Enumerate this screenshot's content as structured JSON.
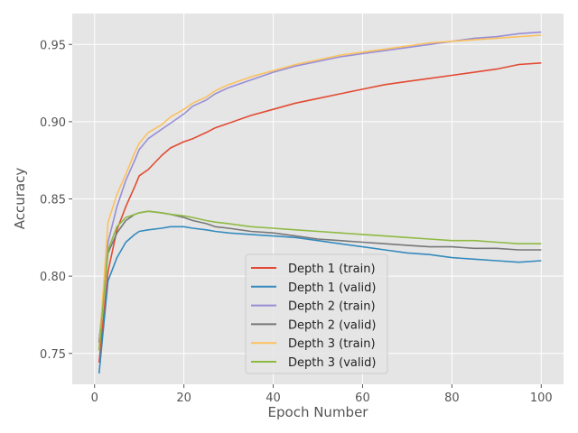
{
  "chart_data": {
    "type": "line",
    "title": "",
    "xlabel": "Epoch Number",
    "ylabel": "Accuracy",
    "xlim": [
      -5,
      105
    ],
    "ylim": [
      0.73,
      0.97
    ],
    "xticks": [
      0,
      20,
      40,
      60,
      80,
      100
    ],
    "yticks": [
      0.75,
      0.8,
      0.85,
      0.9,
      0.95
    ],
    "ytick_labels": [
      "0.75",
      "0.80",
      "0.85",
      "0.90",
      "0.95"
    ],
    "grid": true,
    "legend_position": "bottom-center",
    "x": [
      1,
      3,
      5,
      7,
      9,
      10,
      12,
      15,
      17,
      20,
      22,
      25,
      27,
      30,
      35,
      40,
      45,
      50,
      55,
      60,
      65,
      70,
      75,
      80,
      85,
      90,
      95,
      100
    ],
    "series": [
      {
        "name": "Depth 1 (train)",
        "color": "#E24A33",
        "values": [
          0.744,
          0.803,
          0.83,
          0.845,
          0.858,
          0.865,
          0.869,
          0.878,
          0.883,
          0.887,
          0.889,
          0.893,
          0.896,
          0.899,
          0.904,
          0.908,
          0.912,
          0.915,
          0.918,
          0.921,
          0.924,
          0.926,
          0.928,
          0.93,
          0.932,
          0.934,
          0.937,
          0.938
        ]
      },
      {
        "name": "Depth 1 (valid)",
        "color": "#348ABD",
        "values": [
          0.737,
          0.797,
          0.812,
          0.822,
          0.827,
          0.829,
          0.83,
          0.831,
          0.832,
          0.832,
          0.831,
          0.83,
          0.829,
          0.828,
          0.827,
          0.826,
          0.825,
          0.823,
          0.821,
          0.819,
          0.817,
          0.815,
          0.814,
          0.812,
          0.811,
          0.81,
          0.809,
          0.81
        ]
      },
      {
        "name": "Depth 2 (train)",
        "color": "#988ED5",
        "values": [
          0.757,
          0.822,
          0.845,
          0.862,
          0.875,
          0.882,
          0.889,
          0.895,
          0.899,
          0.905,
          0.91,
          0.914,
          0.918,
          0.922,
          0.927,
          0.932,
          0.936,
          0.939,
          0.942,
          0.944,
          0.946,
          0.948,
          0.95,
          0.952,
          0.954,
          0.955,
          0.957,
          0.958
        ]
      },
      {
        "name": "Depth 2 (valid)",
        "color": "#777777",
        "values": [
          0.757,
          0.815,
          0.828,
          0.836,
          0.84,
          0.841,
          0.842,
          0.841,
          0.84,
          0.838,
          0.836,
          0.834,
          0.832,
          0.831,
          0.829,
          0.828,
          0.826,
          0.824,
          0.823,
          0.822,
          0.821,
          0.82,
          0.819,
          0.819,
          0.818,
          0.818,
          0.817,
          0.817
        ]
      },
      {
        "name": "Depth 3 (train)",
        "color": "#FBC15E",
        "values": [
          0.752,
          0.835,
          0.853,
          0.866,
          0.88,
          0.886,
          0.893,
          0.898,
          0.903,
          0.908,
          0.912,
          0.916,
          0.92,
          0.924,
          0.929,
          0.933,
          0.937,
          0.94,
          0.943,
          0.945,
          0.947,
          0.949,
          0.951,
          0.952,
          0.953,
          0.954,
          0.955,
          0.956
        ]
      },
      {
        "name": "Depth 3 (valid)",
        "color": "#8EBA42",
        "values": [
          0.752,
          0.817,
          0.832,
          0.838,
          0.84,
          0.841,
          0.842,
          0.841,
          0.84,
          0.839,
          0.838,
          0.836,
          0.835,
          0.834,
          0.832,
          0.831,
          0.83,
          0.829,
          0.828,
          0.827,
          0.826,
          0.825,
          0.824,
          0.823,
          0.823,
          0.822,
          0.821,
          0.821
        ]
      }
    ]
  }
}
